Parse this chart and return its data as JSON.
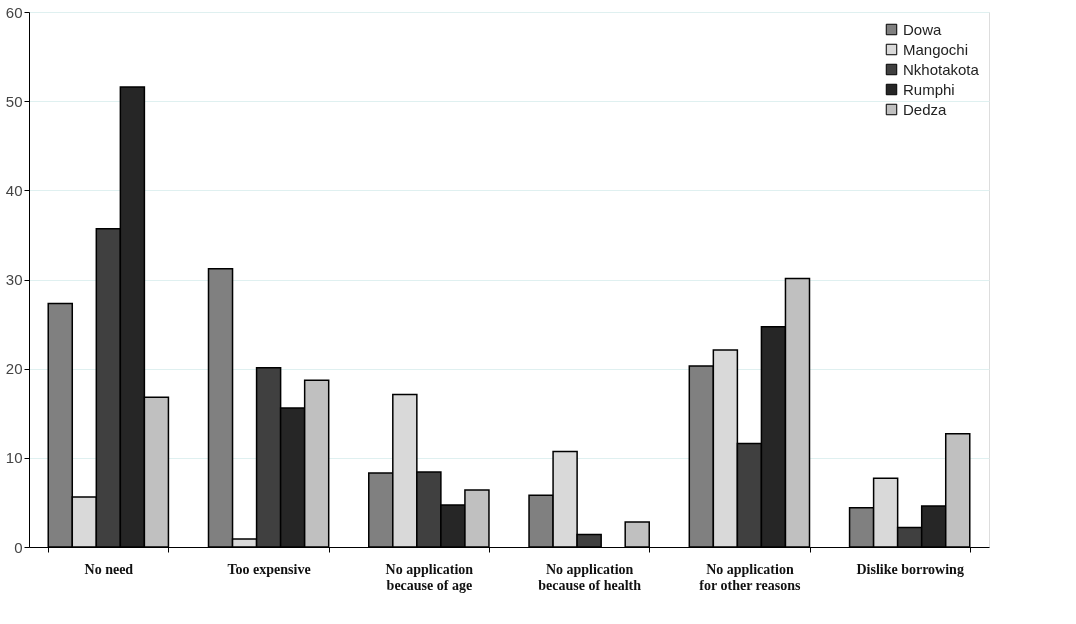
{
  "chart_data": {
    "type": "bar",
    "categories": [
      "No need",
      "Too expensive",
      "No application\nbecause of age",
      "No application\nbecause of health",
      "No application\nfor other reasons",
      "Dislike borrowing"
    ],
    "series": [
      {
        "name": "Dowa",
        "color": "#808080",
        "values": [
          27.3,
          31.2,
          8.3,
          5.8,
          20.3,
          4.4
        ]
      },
      {
        "name": "Mangochi",
        "color": "#d9d9d9",
        "values": [
          5.6,
          0.9,
          17.1,
          10.7,
          22.1,
          7.7
        ]
      },
      {
        "name": "Nkhotakota",
        "color": "#404040",
        "values": [
          35.7,
          20.1,
          8.4,
          1.4,
          11.6,
          2.2
        ]
      },
      {
        "name": "Rumphi",
        "color": "#262626",
        "values": [
          51.6,
          15.6,
          4.7,
          null,
          24.7,
          4.6
        ]
      },
      {
        "name": "Dedza",
        "color": "#c0c0c0",
        "values": [
          16.8,
          18.7,
          6.4,
          2.8,
          30.1,
          12.7
        ]
      }
    ],
    "ylim": [
      0,
      60
    ],
    "yticks": [
      0,
      10,
      20,
      30,
      40,
      50,
      60
    ],
    "grid": "y",
    "legend": "top right"
  }
}
